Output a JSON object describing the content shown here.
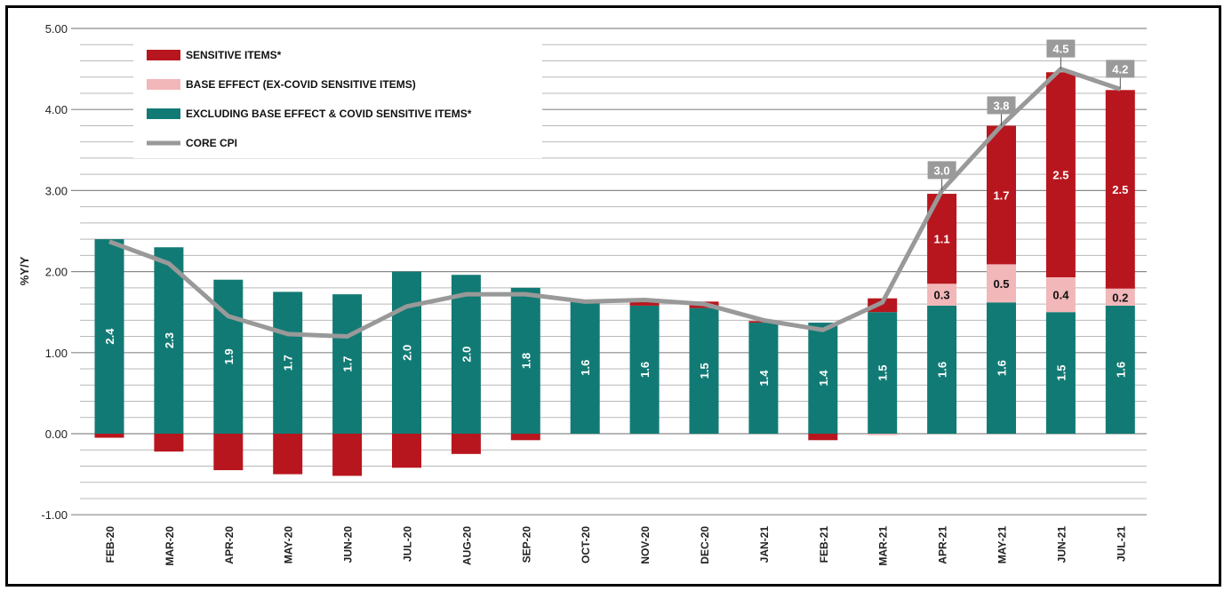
{
  "chart_data": {
    "type": "bar",
    "stacked": true,
    "ylabel": "%Y/Y",
    "ylim": [
      -1.0,
      5.0
    ],
    "yticks": [
      "5.00",
      "4.00",
      "3.00",
      "2.00",
      "1.00",
      "0.00",
      "-1.00"
    ],
    "grid": true,
    "legend_position": "top-left",
    "categories": [
      "FEB-20",
      "MAR-20",
      "APR-20",
      "MAY-20",
      "JUN-20",
      "JUL-20",
      "AUG-20",
      "SEP-20",
      "OCT-20",
      "NOV-20",
      "DEC-20",
      "JAN-21",
      "FEB-21",
      "MAR-21",
      "APR-21",
      "MAY-21",
      "JUN-21",
      "JUL-21"
    ],
    "series": [
      {
        "name": "EXCLUDING BASE EFFECT & COVID SENSITIVE ITEMS*",
        "color": "#127a74",
        "values": [
          2.4,
          2.3,
          1.9,
          1.75,
          1.72,
          2.0,
          1.96,
          1.8,
          1.63,
          1.58,
          1.55,
          1.37,
          1.37,
          1.5,
          1.58,
          1.62,
          1.5,
          1.58
        ],
        "labels": [
          "2.4",
          "2.3",
          "1.9",
          "1.7",
          "1.7",
          "2.0",
          "2.0",
          "1.8",
          "1.6",
          "1.6",
          "1.5",
          "1.4",
          "1.4",
          "1.5",
          "1.6",
          "1.6",
          "1.5",
          "1.6"
        ]
      },
      {
        "name": "BASE EFFECT (EX-COVID SENSITIVE ITEMS)",
        "color": "#f2b7b9",
        "values": [
          0,
          0,
          0,
          0,
          0,
          0,
          0,
          0,
          0,
          0,
          0,
          0,
          0,
          -0.02,
          0.27,
          0.47,
          0.43,
          0.21
        ],
        "labels": [
          "",
          "",
          "",
          "",
          "",
          "",
          "",
          "",
          "",
          "",
          "",
          "",
          "",
          "",
          "0.3",
          "0.5",
          "0.4",
          "0.2"
        ]
      },
      {
        "name": "SENSITIVE ITEMS*",
        "color": "#b8161e",
        "values": [
          -0.05,
          -0.22,
          -0.45,
          -0.5,
          -0.52,
          -0.42,
          -0.25,
          -0.08,
          0,
          0.05,
          0.08,
          0.02,
          -0.08,
          0.17,
          1.11,
          1.71,
          2.53,
          2.45
        ],
        "labels": [
          "",
          "",
          "",
          "",
          "",
          "",
          "",
          "",
          "",
          "",
          "",
          "",
          "",
          "",
          "1.1",
          "1.7",
          "2.5",
          "2.5"
        ]
      },
      {
        "name": "CORE CPI",
        "type": "line",
        "color": "#999999",
        "values": [
          2.37,
          2.1,
          1.45,
          1.23,
          1.2,
          1.57,
          1.72,
          1.72,
          1.63,
          1.65,
          1.6,
          1.4,
          1.28,
          1.62,
          3.0,
          3.8,
          4.5,
          4.25
        ],
        "labels": [
          "",
          "",
          "",
          "",
          "",
          "",
          "",
          "",
          "",
          "",
          "",
          "",
          "",
          "",
          "3.0",
          "3.8",
          "4.5",
          "4.2"
        ]
      }
    ]
  }
}
